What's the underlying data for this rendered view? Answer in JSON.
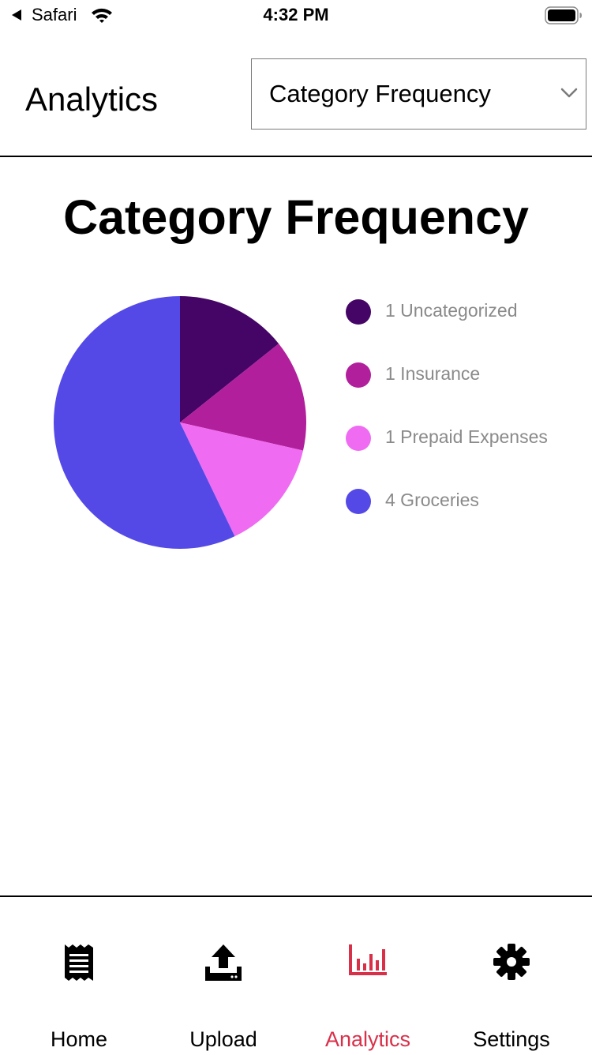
{
  "status_bar": {
    "back_app": "Safari",
    "time": "4:32 PM"
  },
  "header": {
    "title": "Analytics",
    "select": {
      "value": "Category Frequency"
    }
  },
  "chart_data": {
    "type": "pie",
    "title": "Category Frequency",
    "slices": [
      {
        "label": "1 Uncategorized",
        "category": "Uncategorized",
        "value": 1,
        "color": "#450566"
      },
      {
        "label": "1 Insurance",
        "category": "Insurance",
        "value": 1,
        "color": "#b21f9c"
      },
      {
        "label": "1 Prepaid Expenses",
        "category": "Prepaid Expenses",
        "value": 1,
        "color": "#ef6cf2"
      },
      {
        "label": "4 Groceries",
        "category": "Groceries",
        "value": 4,
        "color": "#5449e6"
      }
    ],
    "legend": "right"
  },
  "tabs": [
    {
      "label": "Home",
      "icon": "receipt-icon",
      "active": false
    },
    {
      "label": "Upload",
      "icon": "upload-icon",
      "active": false
    },
    {
      "label": "Analytics",
      "icon": "bar-chart-icon",
      "active": true
    },
    {
      "label": "Settings",
      "icon": "gear-icon",
      "active": false
    }
  ],
  "colors": {
    "accent": "#d9304a",
    "text": "#000000",
    "legend_text": "#8a8a8a"
  }
}
